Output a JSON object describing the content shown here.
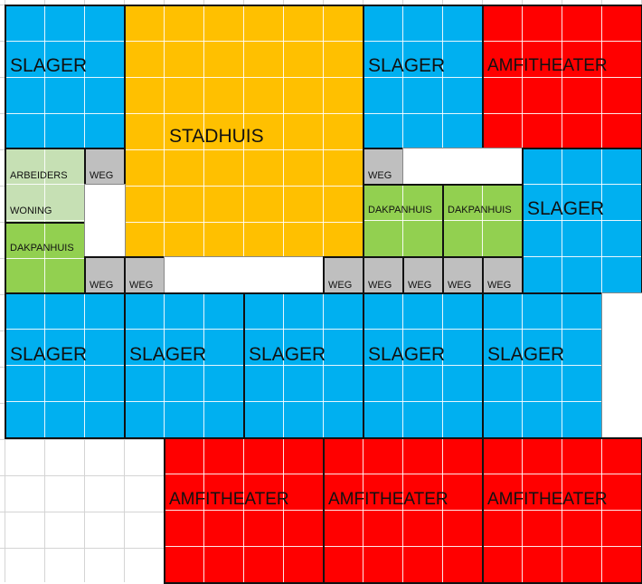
{
  "colors": {
    "slager": "#00b0f0",
    "stadhuis": "#ffc000",
    "amfitheater": "#ff0000",
    "dakpanhuis": "#92d050",
    "arbeiderswoning": "#c6e0b4",
    "weg": "#bfbfbf"
  },
  "labels": {
    "slager": "SLAGER",
    "stadhuis": "STADHUIS",
    "amfitheater": "AMFITHEATER",
    "dakpanhuis": "DAKPANHUIS",
    "arbeiders": "ARBEIDERS",
    "woning": "WONING",
    "weg": "WEG"
  }
}
